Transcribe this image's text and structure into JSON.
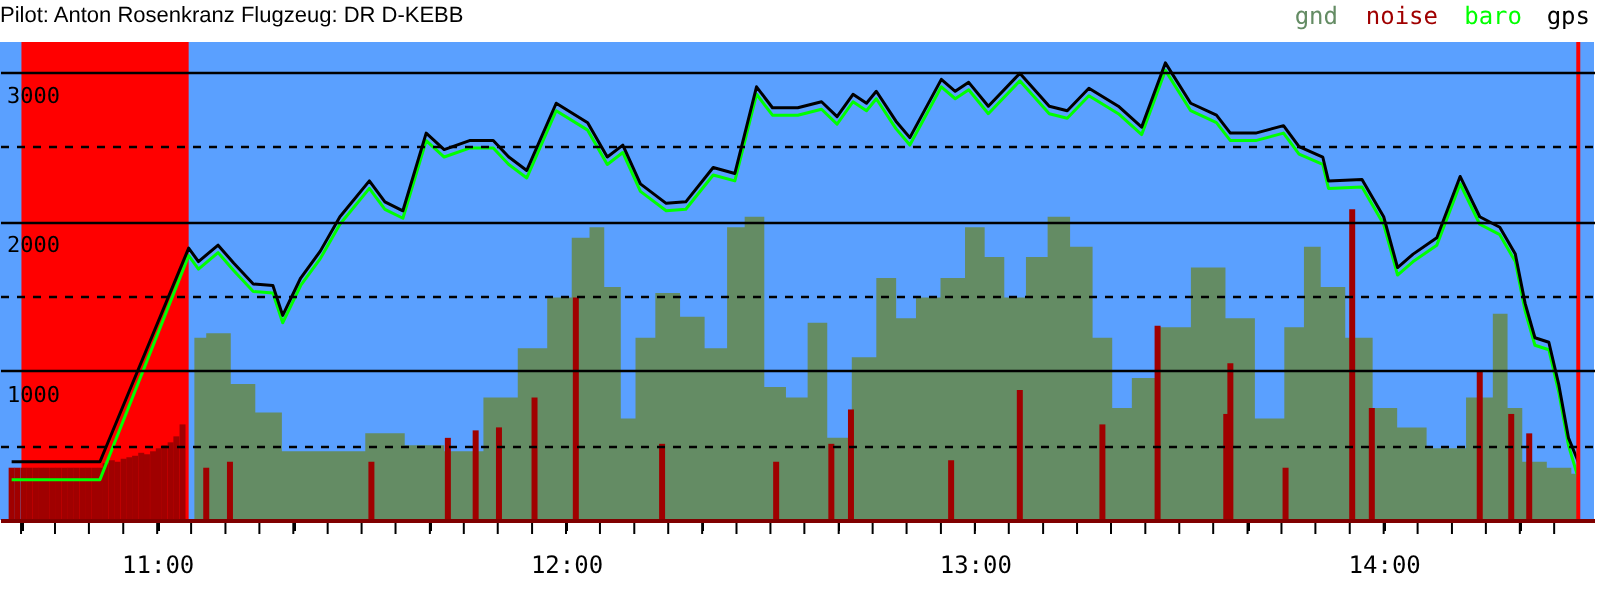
{
  "chart_data": {
    "type": "line",
    "title": "Pilot: Anton Rosenkranz Flugzeug: DR D-KEBB",
    "x": [
      10.644,
      10.86,
      11.077,
      11.101,
      11.149,
      11.187,
      11.235,
      11.283,
      11.307,
      11.351,
      11.399,
      11.447,
      11.519,
      11.557,
      11.601,
      11.658,
      11.702,
      11.764,
      11.822,
      11.86,
      11.904,
      11.976,
      12.053,
      12.101,
      12.139,
      12.182,
      12.245,
      12.293,
      12.36,
      12.413,
      12.466,
      12.505,
      12.567,
      12.625,
      12.663,
      12.702,
      12.735,
      12.759,
      12.807,
      12.841,
      12.918,
      12.952,
      12.985,
      13.033,
      13.11,
      13.182,
      13.226,
      13.279,
      13.351,
      13.408,
      13.466,
      13.528,
      13.591,
      13.625,
      13.687,
      13.755,
      13.793,
      13.851,
      13.865,
      13.947,
      14.0,
      14.034,
      14.072,
      14.13,
      14.187,
      14.235,
      14.284,
      14.322,
      14.346,
      14.37,
      14.404,
      14.428,
      14.452,
      14.476
    ],
    "series": [
      {
        "name": "gnd",
        "type": "area",
        "color": "#648c64",
        "x": [
          11.091,
          11.149,
          11.211,
          11.269,
          11.341,
          11.461,
          11.557,
          11.654,
          11.75,
          11.846,
          11.918,
          11.99,
          12.038,
          12.077,
          12.11,
          12.158,
          12.182,
          12.255,
          12.303,
          12.375,
          12.413,
          12.461,
          12.509,
          12.567,
          12.615,
          12.663,
          12.735,
          12.783,
          12.832,
          12.88,
          12.952,
          13.0,
          13.048,
          13.096,
          13.154,
          13.202,
          13.264,
          13.312,
          13.36,
          13.408,
          13.48,
          13.577,
          13.649,
          13.721,
          13.793,
          13.817,
          13.875,
          13.937,
          14.009,
          14.057,
          14.153,
          14.25,
          14.284,
          14.322,
          14.356,
          14.442,
          14.476
        ],
        "values": [
          1220,
          1250,
          910,
          720,
          460,
          460,
          580,
          500,
          460,
          820,
          1150,
          1490,
          1890,
          1960,
          1560,
          680,
          1220,
          1520,
          1360,
          1150,
          1960,
          2030,
          890,
          820,
          1320,
          550,
          1090,
          1620,
          1350,
          1490,
          1620,
          1960,
          1760,
          1490,
          1760,
          2030,
          1830,
          1220,
          750,
          950,
          1290,
          1690,
          1350,
          680,
          1290,
          1830,
          1560,
          1220,
          750,
          620,
          480,
          820,
          1380,
          750,
          390,
          350,
          310
        ]
      },
      {
        "name": "noise",
        "type": "bar",
        "color": "#a00000",
        "x": [
          10.644,
          10.658,
          10.673,
          10.687,
          10.702,
          10.716,
          10.73,
          10.745,
          10.759,
          10.774,
          10.788,
          10.802,
          10.817,
          10.831,
          10.846,
          10.86,
          10.874,
          10.889,
          10.903,
          10.918,
          10.932,
          10.946,
          10.961,
          10.975,
          10.99,
          11.004,
          11.018,
          11.033,
          11.047,
          11.062,
          11.12,
          11.178,
          11.524,
          11.711,
          11.779,
          11.836,
          11.923,
          12.024,
          12.235,
          12.514,
          12.649,
          12.697,
          12.942,
          13.11,
          13.312,
          13.447,
          13.615,
          13.625,
          13.76,
          13.923,
          13.971,
          14.235,
          14.312,
          14.356
        ],
        "values": [
          350,
          350,
          350,
          350,
          350,
          350,
          350,
          350,
          350,
          350,
          350,
          350,
          350,
          350,
          350,
          350,
          380,
          400,
          390,
          410,
          420,
          430,
          450,
          440,
          460,
          480,
          500,
          520,
          560,
          640,
          350,
          390,
          390,
          550,
          600,
          620,
          820,
          1490,
          510,
          390,
          510,
          740,
          400,
          870,
          640,
          1300,
          710,
          1050,
          350,
          2080,
          750,
          990,
          710,
          580
        ]
      },
      {
        "name": "baro",
        "color": "#00ff00",
        "values": [
          270,
          270,
          1770,
          1680,
          1790,
          1670,
          1530,
          1520,
          1320,
          1570,
          1750,
          1980,
          2220,
          2080,
          2020,
          2540,
          2430,
          2490,
          2490,
          2380,
          2290,
          2740,
          2610,
          2380,
          2460,
          2200,
          2070,
          2080,
          2310,
          2270,
          2850,
          2710,
          2710,
          2750,
          2650,
          2800,
          2740,
          2820,
          2620,
          2510,
          2900,
          2820,
          2880,
          2720,
          2940,
          2720,
          2690,
          2840,
          2720,
          2580,
          3010,
          2740,
          2660,
          2540,
          2540,
          2590,
          2450,
          2380,
          2220,
          2230,
          1980,
          1640,
          1730,
          1840,
          2250,
          1980,
          1910,
          1730,
          1400,
          1170,
          1140,
          860,
          500,
          280
        ]
      },
      {
        "name": "gps",
        "color": "#000000",
        "values": [
          390,
          390,
          1820,
          1730,
          1840,
          1720,
          1580,
          1570,
          1370,
          1620,
          1800,
          2030,
          2270,
          2130,
          2070,
          2590,
          2480,
          2540,
          2540,
          2430,
          2340,
          2790,
          2660,
          2430,
          2510,
          2250,
          2120,
          2130,
          2360,
          2320,
          2900,
          2760,
          2760,
          2800,
          2700,
          2850,
          2790,
          2870,
          2670,
          2560,
          2950,
          2870,
          2930,
          2770,
          2990,
          2770,
          2740,
          2890,
          2770,
          2630,
          3060,
          2790,
          2710,
          2590,
          2590,
          2640,
          2500,
          2430,
          2270,
          2280,
          2030,
          1690,
          1780,
          1890,
          2300,
          2030,
          1960,
          1780,
          1450,
          1220,
          1190,
          910,
          550,
          390
        ]
      }
    ],
    "xlim": [
      10.64,
      14.49
    ],
    "xticks": [
      {
        "value": 10.667,
        "label": null
      },
      {
        "value": 10.75,
        "label": null
      },
      {
        "value": 10.833,
        "label": null
      },
      {
        "value": 10.917,
        "label": null
      },
      {
        "value": 11,
        "label": "11:00"
      },
      {
        "value": 11.083,
        "label": null
      },
      {
        "value": 11.167,
        "label": null
      },
      {
        "value": 11.25,
        "label": null
      },
      {
        "value": 11.333,
        "label": null
      },
      {
        "value": 11.417,
        "label": null
      },
      {
        "value": 11.5,
        "label": null
      },
      {
        "value": 11.583,
        "label": null
      },
      {
        "value": 11.667,
        "label": null
      },
      {
        "value": 11.75,
        "label": null
      },
      {
        "value": 11.833,
        "label": null
      },
      {
        "value": 11.917,
        "label": null
      },
      {
        "value": 12,
        "label": "12:00"
      },
      {
        "value": 12.083,
        "label": null
      },
      {
        "value": 12.167,
        "label": null
      },
      {
        "value": 12.25,
        "label": null
      },
      {
        "value": 12.333,
        "label": null
      },
      {
        "value": 12.417,
        "label": null
      },
      {
        "value": 12.5,
        "label": null
      },
      {
        "value": 12.583,
        "label": null
      },
      {
        "value": 12.667,
        "label": null
      },
      {
        "value": 12.75,
        "label": null
      },
      {
        "value": 12.833,
        "label": null
      },
      {
        "value": 12.917,
        "label": null
      },
      {
        "value": 13,
        "label": "13:00"
      },
      {
        "value": 13.083,
        "label": null
      },
      {
        "value": 13.167,
        "label": null
      },
      {
        "value": 13.25,
        "label": null
      },
      {
        "value": 13.333,
        "label": null
      },
      {
        "value": 13.417,
        "label": null
      },
      {
        "value": 13.5,
        "label": null
      },
      {
        "value": 13.583,
        "label": null
      },
      {
        "value": 13.667,
        "label": null
      },
      {
        "value": 13.75,
        "label": null
      },
      {
        "value": 13.833,
        "label": null
      },
      {
        "value": 13.917,
        "label": null
      },
      {
        "value": 14,
        "label": "14:00"
      },
      {
        "value": 14.083,
        "label": null
      },
      {
        "value": 14.167,
        "label": null
      },
      {
        "value": 14.25,
        "label": null
      },
      {
        "value": 14.333,
        "label": null
      },
      {
        "value": 14.417,
        "label": null
      }
    ],
    "ylim": [
      0,
      3200
    ],
    "yticks": [
      {
        "value": 500,
        "label": null
      },
      1000,
      {
        "value": 1500,
        "label": null
      },
      2000,
      {
        "value": 2500,
        "label": null
      },
      3000
    ],
    "bands": [
      {
        "axis": "x",
        "from": 10.668,
        "to": 11.077,
        "color": "#ff0000"
      }
    ],
    "ref_lines": [
      {
        "axis": "x",
        "value": 14.476,
        "color": "#ff0000"
      }
    ],
    "grid": "y",
    "legend": "top right",
    "line_style": "solid"
  }
}
